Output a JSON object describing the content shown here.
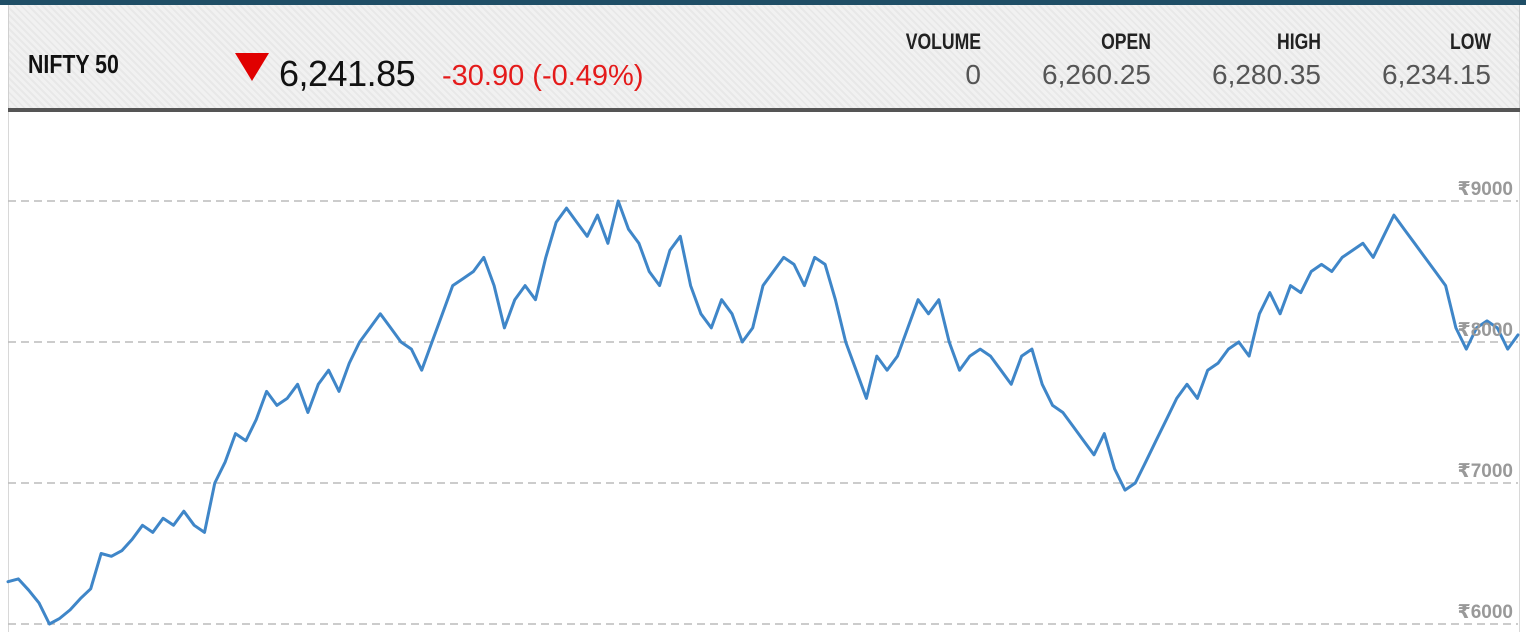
{
  "quote": {
    "name": "NIFTY 50",
    "direction_icon": "triangle-down-icon",
    "price": "6,241.85",
    "change": "-30.90 (-0.49%)",
    "stats": [
      {
        "label": "VOLUME",
        "value": "0"
      },
      {
        "label": "OPEN",
        "value": "6,260.25"
      },
      {
        "label": "HIGH",
        "value": "6,280.35"
      },
      {
        "label": "LOW",
        "value": "6,234.15"
      }
    ]
  },
  "colors": {
    "line": "#3f86c8",
    "negative": "#e41b1b",
    "gridline": "#bbbbbb",
    "tick": "#999999"
  },
  "chart_data": {
    "type": "line",
    "yticks": [
      6000,
      7000,
      8000,
      9000
    ],
    "ytick_labels": [
      "₹6000",
      "₹7000",
      "₹8000",
      "₹9000"
    ],
    "ylim": [
      6000,
      9000
    ],
    "grid": true,
    "legend": "none",
    "series": [
      {
        "values": [
          6300,
          6320,
          6240,
          6150,
          6000,
          6040,
          6100,
          6180,
          6250,
          6500,
          6480,
          6520,
          6600,
          6700,
          6650,
          6750,
          6700,
          6800,
          6700,
          6650,
          7000,
          7150,
          7350,
          7300,
          7450,
          7650,
          7550,
          7600,
          7700,
          7500,
          7700,
          7800,
          7650,
          7850,
          8000,
          8100,
          8200,
          8100,
          8000,
          7950,
          7800,
          8000,
          8200,
          8400,
          8450,
          8500,
          8600,
          8400,
          8100,
          8300,
          8400,
          8300,
          8600,
          8850,
          8950,
          8850,
          8750,
          8900,
          8700,
          9000,
          8800,
          8700,
          8500,
          8400,
          8650,
          8750,
          8400,
          8200,
          8100,
          8300,
          8200,
          8000,
          8100,
          8400,
          8500,
          8600,
          8550,
          8400,
          8600,
          8550,
          8300,
          8000,
          7800,
          7600,
          7900,
          7800,
          7900,
          8100,
          8300,
          8200,
          8300,
          8000,
          7800,
          7900,
          7950,
          7900,
          7800,
          7700,
          7900,
          7950,
          7700,
          7550,
          7500,
          7400,
          7300,
          7200,
          7350,
          7100,
          6950,
          7000,
          7150,
          7300,
          7450,
          7600,
          7700,
          7600,
          7800,
          7850,
          7950,
          8000,
          7900,
          8200,
          8350,
          8200,
          8400,
          8350,
          8500,
          8550,
          8500,
          8600,
          8650,
          8700,
          8600,
          8750,
          8900,
          8800,
          8700,
          8600,
          8500,
          8400,
          8100,
          7950,
          8100,
          8150,
          8100,
          7950,
          8050
        ]
      }
    ]
  }
}
